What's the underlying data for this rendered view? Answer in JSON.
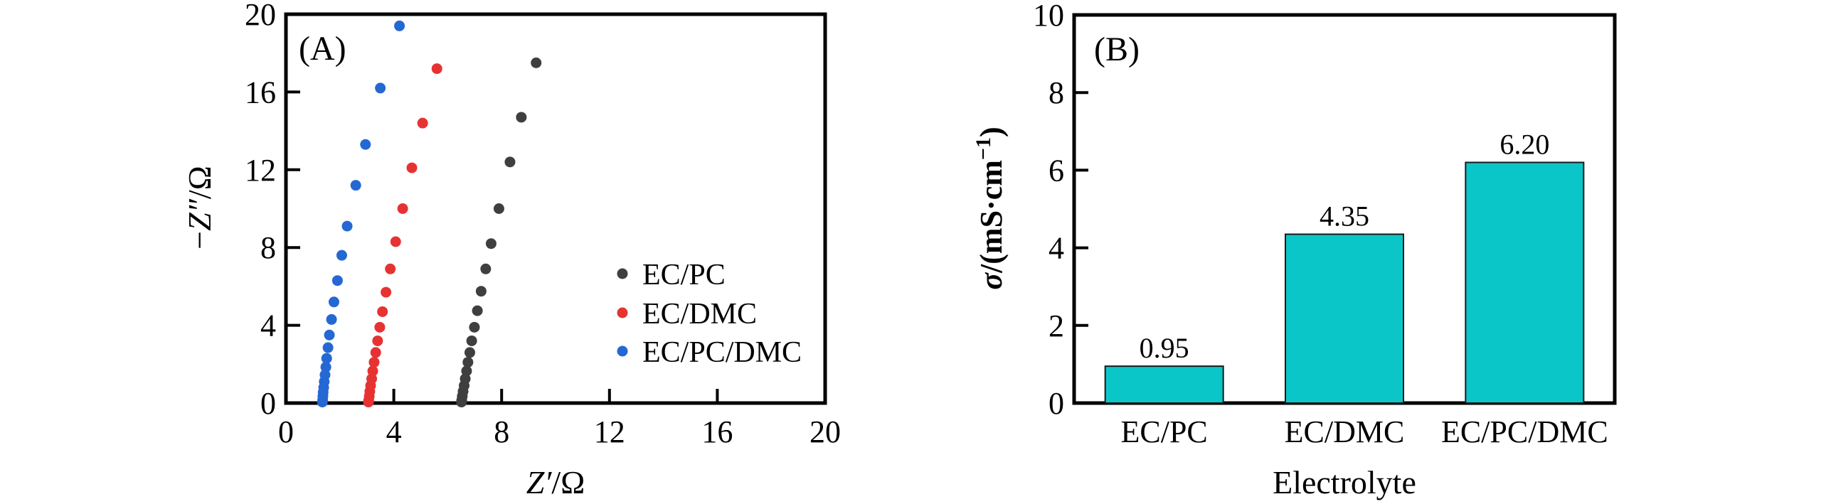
{
  "figure": {
    "background": "#ffffff",
    "panel_count": 2
  },
  "chart_data": [
    {
      "type": "scatter",
      "panel_label": "(A)",
      "xlabel": "Z′/Ω",
      "xlabel_parts": {
        "italic": "Z′",
        "rest": "/Ω"
      },
      "ylabel": "−Z″/Ω",
      "ylabel_parts": {
        "minus": "−",
        "italic": "Z″",
        "rest": "/Ω"
      },
      "xlim": [
        0,
        20
      ],
      "ylim": [
        0,
        20
      ],
      "x_ticks": [
        0,
        4,
        8,
        12,
        16,
        20
      ],
      "y_ticks": [
        0,
        4,
        8,
        12,
        16,
        20
      ],
      "grid": false,
      "legend_position": "inside lower right",
      "series": [
        {
          "name": "EC/PC",
          "color": "#3f3f3f",
          "points": [
            [
              6.51,
              0.05
            ],
            [
              6.52,
              0.15
            ],
            [
              6.54,
              0.35
            ],
            [
              6.57,
              0.6
            ],
            [
              6.61,
              0.9
            ],
            [
              6.65,
              1.25
            ],
            [
              6.7,
              1.65
            ],
            [
              6.75,
              2.1
            ],
            [
              6.82,
              2.6
            ],
            [
              6.89,
              3.2
            ],
            [
              6.99,
              3.9
            ],
            [
              7.1,
              4.75
            ],
            [
              7.24,
              5.75
            ],
            [
              7.41,
              6.9
            ],
            [
              7.61,
              8.2
            ],
            [
              7.9,
              10.0
            ],
            [
              8.31,
              12.4
            ],
            [
              8.73,
              14.7
            ],
            [
              9.28,
              17.5
            ]
          ]
        },
        {
          "name": "EC/DMC",
          "color": "#e63332",
          "points": [
            [
              3.06,
              0.05
            ],
            [
              3.07,
              0.15
            ],
            [
              3.09,
              0.35
            ],
            [
              3.11,
              0.6
            ],
            [
              3.14,
              0.9
            ],
            [
              3.18,
              1.25
            ],
            [
              3.22,
              1.65
            ],
            [
              3.27,
              2.1
            ],
            [
              3.33,
              2.6
            ],
            [
              3.4,
              3.2
            ],
            [
              3.48,
              3.9
            ],
            [
              3.58,
              4.7
            ],
            [
              3.71,
              5.7
            ],
            [
              3.87,
              6.9
            ],
            [
              4.07,
              8.3
            ],
            [
              4.33,
              10.0
            ],
            [
              4.67,
              12.1
            ],
            [
              5.07,
              14.4
            ],
            [
              5.6,
              17.2
            ]
          ]
        },
        {
          "name": "EC/PC/DMC",
          "color": "#2468d4",
          "points": [
            [
              1.35,
              0.05
            ],
            [
              1.36,
              0.15
            ],
            [
              1.37,
              0.35
            ],
            [
              1.38,
              0.55
            ],
            [
              1.4,
              0.8
            ],
            [
              1.42,
              1.1
            ],
            [
              1.45,
              1.45
            ],
            [
              1.48,
              1.85
            ],
            [
              1.51,
              2.3
            ],
            [
              1.56,
              2.85
            ],
            [
              1.61,
              3.5
            ],
            [
              1.69,
              4.3
            ],
            [
              1.78,
              5.2
            ],
            [
              1.91,
              6.3
            ],
            [
              2.07,
              7.6
            ],
            [
              2.27,
              9.1
            ],
            [
              2.59,
              11.2
            ],
            [
              2.95,
              13.3
            ],
            [
              3.5,
              16.2
            ],
            [
              4.21,
              19.4
            ]
          ]
        }
      ]
    },
    {
      "type": "bar",
      "panel_label": "(B)",
      "xlabel": "Electrolyte",
      "ylabel": "σ/(mS·cm−1)",
      "ylabel_parts": {
        "sigma": "σ",
        "rest": "/(mS·cm",
        "superscript": "−1",
        "close": ")"
      },
      "ylim": [
        0,
        10
      ],
      "y_ticks": [
        0,
        2,
        4,
        6,
        8,
        10
      ],
      "grid": false,
      "categories": [
        "EC/PC",
        "EC/DMC",
        "EC/PC/DMC"
      ],
      "values": [
        0.95,
        4.35,
        6.2
      ],
      "value_labels": [
        "0.95",
        "4.35",
        "6.20"
      ],
      "bar_color": "#0bc6c8",
      "bar_edge_color": "#1a1a1a"
    }
  ]
}
